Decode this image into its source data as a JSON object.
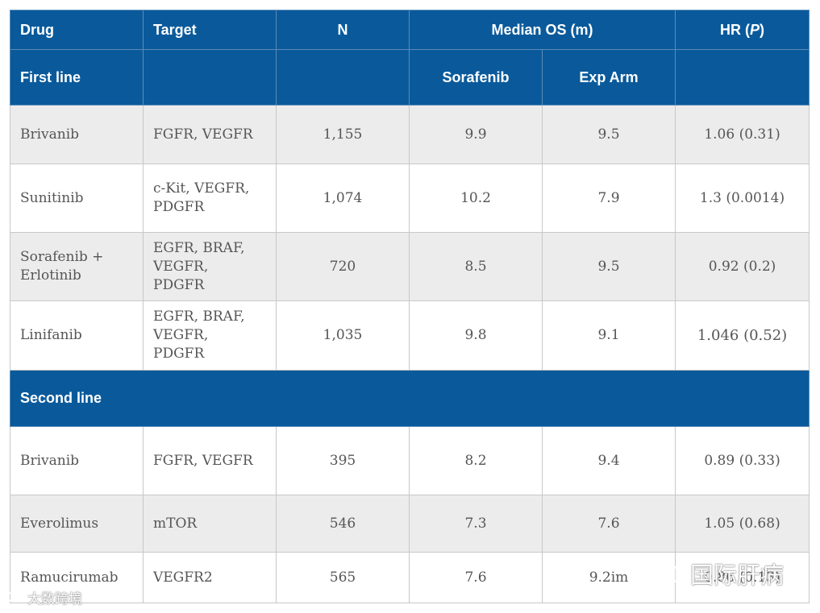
{
  "header": {
    "drug": "Drug",
    "target": "Target",
    "n": "N",
    "median_os": "Median OS (m)",
    "hr_prefix": "HR (",
    "hr_p": "P",
    "hr_suffix": ")"
  },
  "first_line": {
    "label": "First line",
    "sorafenib": "Sorafenib",
    "exp_arm": "Exp Arm"
  },
  "rows_first_line": [
    {
      "drug": "Brivanib",
      "target_lines": [
        "FGFR, VEGFR"
      ],
      "n": "1,155",
      "sorafenib": "9.9",
      "exp": "9.5",
      "hr": "1.06 (0.31)"
    },
    {
      "drug": "Sunitinib",
      "target_lines": [
        "c-Kit, VEGFR,",
        "PDGFR"
      ],
      "n": "1,074",
      "sorafenib": "10.2",
      "exp": "7.9",
      "hr": "1.3 (0.0014)"
    },
    {
      "drug_lines": [
        "Sorafenib +",
        "Erlotinib"
      ],
      "target_lines": [
        "EGFR, BRAF,",
        "VEGFR,",
        "PDGFR"
      ],
      "n": "720",
      "sorafenib": "8.5",
      "exp": "9.5",
      "hr": "0.92 (0.2)"
    },
    {
      "drug": "Linifanib",
      "target_lines": [
        "EGFR, BRAF,",
        "VEGFR,",
        "PDGFR"
      ],
      "n": "1,035",
      "sorafenib": "9.8",
      "exp": "9.1",
      "hr": "1.046 (0.52)"
    }
  ],
  "second_line": {
    "label": "Second line"
  },
  "rows_second_line": [
    {
      "drug": "Brivanib",
      "target": "FGFR, VEGFR",
      "n": "395",
      "sorafenib": "8.2",
      "exp": "9.4",
      "hr": "0.89 (0.33)"
    },
    {
      "drug": "Everolimus",
      "target": "mTOR",
      "n": "546",
      "sorafenib": "7.3",
      "exp": "7.6",
      "hr": "1.05 (0.68)"
    },
    {
      "drug": "Ramucirumab",
      "target": "VEGFR2",
      "n": "565",
      "sorafenib": "7.6",
      "exp": "9.2im",
      "hr": "0.86 (0.13)"
    }
  ],
  "watermarks": {
    "left_text": "大数跨境",
    "right_text": "国际肝病"
  },
  "colors": {
    "header_blue": "#0a5a9b",
    "row_grey": "#ececec",
    "row_white": "#ffffff",
    "body_text": "#555555"
  }
}
